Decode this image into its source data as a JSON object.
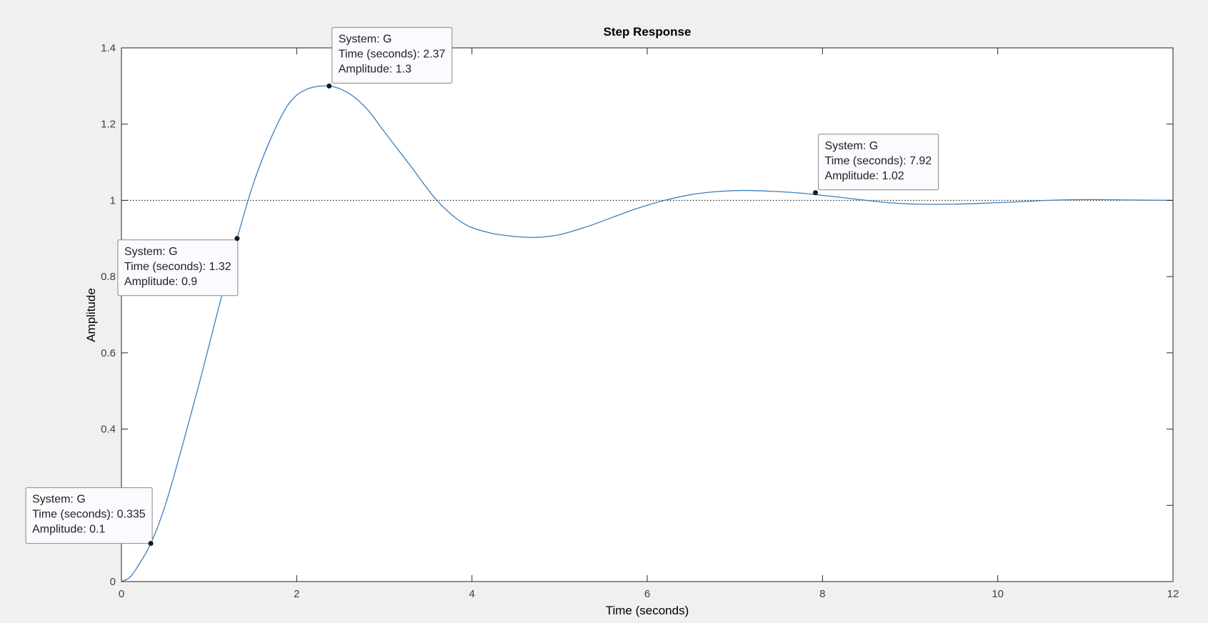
{
  "chart_data": {
    "type": "line",
    "title": "Step Response",
    "xlabel": "Time (seconds)",
    "ylabel": "Amplitude",
    "xlim": [
      0,
      12
    ],
    "ylim": [
      0,
      1.4
    ],
    "xticks": [
      0,
      2,
      4,
      6,
      8,
      10,
      12
    ],
    "xtick_labels": [
      "0",
      "2",
      "4",
      "6",
      "8",
      "10",
      "12"
    ],
    "yticks": [
      0,
      0.2,
      0.4,
      0.6,
      0.8,
      1.0,
      1.2,
      1.4
    ],
    "ytick_labels": [
      "0",
      "0.2",
      "0.4",
      "0.6",
      "0.8",
      "1",
      "1.2",
      "1.4"
    ],
    "grid": false,
    "reference_line": {
      "y": 1.0,
      "style": "dotted"
    },
    "series": [
      {
        "color": "#3a7fc0",
        "x": [
          0,
          0.1,
          0.2,
          0.335,
          0.5,
          0.7,
          0.9,
          1.1,
          1.32,
          1.5,
          1.7,
          1.9,
          2.1,
          2.37,
          2.6,
          2.8,
          3.0,
          3.3,
          3.6,
          3.9,
          4.2,
          4.5,
          4.75,
          5.0,
          5.3,
          5.6,
          5.9,
          6.2,
          6.5,
          6.8,
          7.1,
          7.4,
          7.7,
          7.92,
          8.2,
          8.5,
          8.8,
          9.1,
          9.5,
          9.9,
          10.3,
          10.7,
          11.1,
          11.5,
          12.0
        ],
        "y": [
          0,
          0.012,
          0.045,
          0.1,
          0.2,
          0.36,
          0.53,
          0.71,
          0.9,
          1.04,
          1.16,
          1.25,
          1.29,
          1.3,
          1.28,
          1.24,
          1.18,
          1.09,
          1.0,
          0.94,
          0.915,
          0.905,
          0.903,
          0.91,
          0.93,
          0.955,
          0.98,
          1.0,
          1.015,
          1.023,
          1.026,
          1.024,
          1.02,
          1.015,
          1.008,
          1.0,
          0.993,
          0.99,
          0.99,
          0.993,
          0.997,
          1.001,
          1.002,
          1.001,
          1.0
        ]
      }
    ],
    "annotations": [
      {
        "x": 0.335,
        "y": 0.1,
        "lines": [
          "System: G",
          "Time (seconds): 0.335",
          "Amplitude: 0.1"
        ],
        "box_side": "above-left"
      },
      {
        "x": 1.32,
        "y": 0.9,
        "lines": [
          "System: G",
          "Time (seconds): 1.32",
          "Amplitude: 0.9"
        ],
        "box_side": "below-left"
      },
      {
        "x": 2.37,
        "y": 1.3,
        "lines": [
          "System: G",
          "Time (seconds): 2.37",
          "Amplitude: 1.3"
        ],
        "box_side": "above-right"
      },
      {
        "x": 7.92,
        "y": 1.02,
        "lines": [
          "System: G",
          "Time (seconds): 7.92",
          "Amplitude: 1.02"
        ],
        "box_side": "above-right"
      }
    ]
  }
}
